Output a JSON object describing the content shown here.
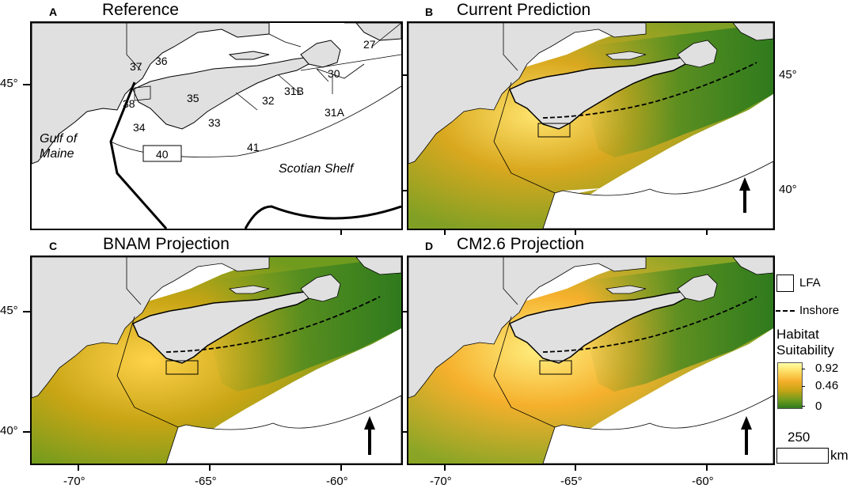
{
  "panels": {
    "a": {
      "letter": "A",
      "title": "Reference"
    },
    "b": {
      "letter": "B",
      "title": "Current Prediction"
    },
    "c": {
      "letter": "C",
      "title": "BNAM Projection"
    },
    "d": {
      "letter": "D",
      "title": "CM2.6 Projection"
    }
  },
  "lfa_labels": {
    "l27": "27",
    "l30": "30",
    "l31a": "31A",
    "l31b": "31B",
    "l32": "32",
    "l33": "33",
    "l34": "34",
    "l35": "35",
    "l36": "36",
    "l37": "37",
    "l38": "38",
    "l40": "40",
    "l41": "41"
  },
  "regions": {
    "gulf_of_maine": "Gulf of\nMaine",
    "scotian_shelf": "Scotian Shelf"
  },
  "axes": {
    "lat_top": "45°",
    "lat_bottom": "40°",
    "lon_70": "-70°",
    "lon_65": "-65°",
    "lon_60": "-60°"
  },
  "legend": {
    "lfa": "LFA",
    "inshore": "Inshore",
    "title_line1": "Habitat",
    "title_line2": "Suitability",
    "max": "0.92",
    "mid": "0.46",
    "min": "0",
    "scale_value": "250",
    "scale_unit": "km"
  },
  "colors": {
    "land": "#e0e0e0",
    "water": "#ffffff",
    "high": "#ffffa8",
    "mid": "#f5b02c",
    "low": "#2f7a1d"
  }
}
